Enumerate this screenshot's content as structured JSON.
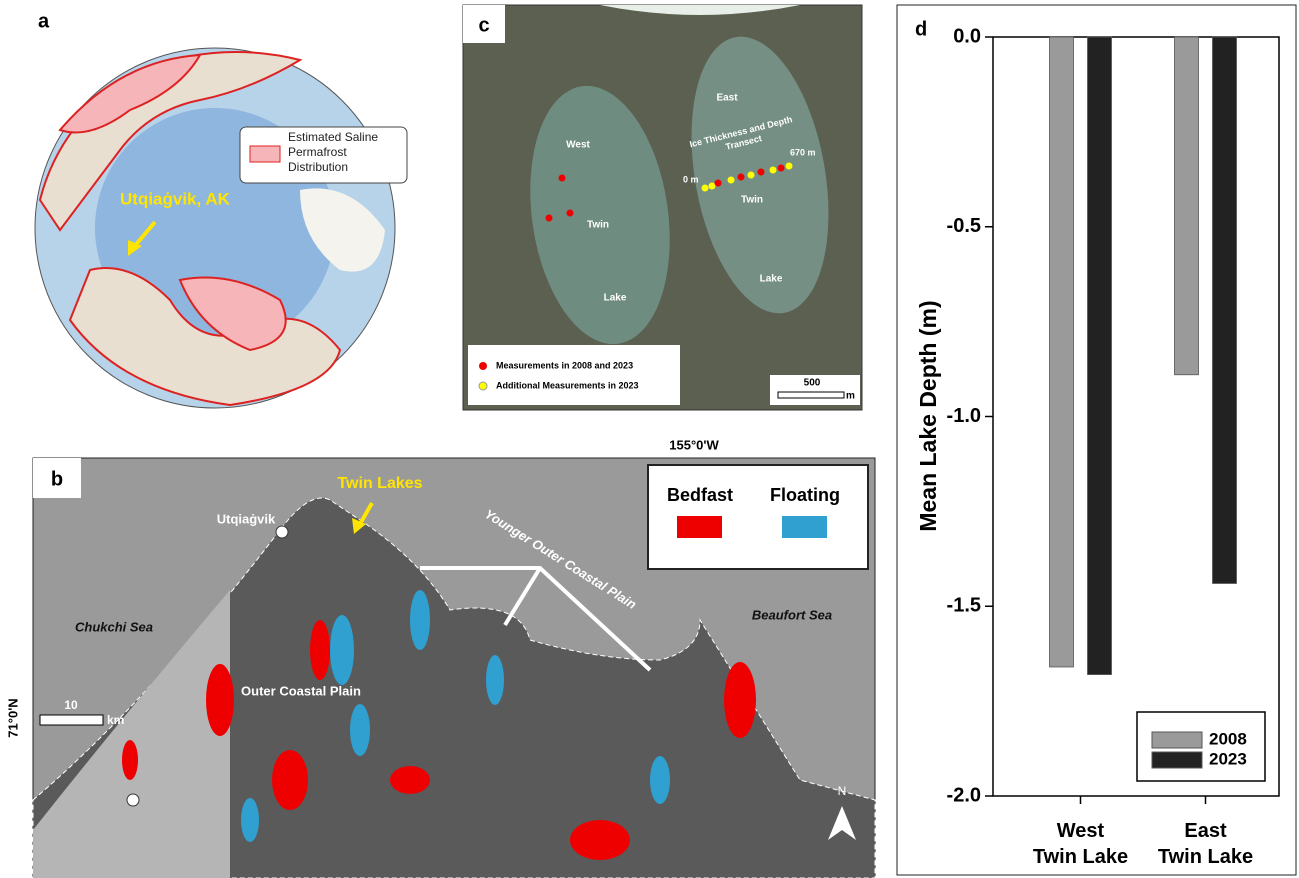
{
  "panel_a": {
    "label": "a",
    "legend": "Estimated Saline Permafrost Distribution",
    "place": "Utqiaġvik, AK"
  },
  "panel_b": {
    "label": "b",
    "longitude": "155°0'W",
    "latitude": "71°0'N",
    "twin_lakes": "Twin Lakes",
    "town": "Utqiaġvik",
    "legend": [
      "Bedfast",
      "Floating"
    ],
    "younger_plain": "Younger Outer Coastal Plain",
    "chukchi": "Chukchi Sea",
    "beaufort": "Beaufort Sea",
    "outer_plain": "Outer Coastal Plain",
    "scale": "10",
    "scale_unit": "km",
    "north": "N"
  },
  "panel_c": {
    "label": "c",
    "west": [
      "West",
      "Twin",
      "Lake"
    ],
    "east": [
      "East",
      "Twin",
      "Lake"
    ],
    "transect": "Ice Thickness and Depth Transect",
    "start": "0 m",
    "end": "670 m",
    "legend": [
      "Measurements in 2008 and 2023",
      "Additional Measurements in 2023"
    ],
    "scale": "500",
    "scale_unit": "m"
  },
  "chart_data": {
    "type": "bar",
    "panel_label": "d",
    "y_label": "Mean Lake Depth (m)",
    "categories": [
      "West\nTwin Lake",
      "East\nTwin Lake"
    ],
    "series": [
      {
        "name": "2008",
        "color": "#9a9a9a",
        "values": [
          -1.66,
          -0.89
        ]
      },
      {
        "name": "2023",
        "color": "#222222",
        "values": [
          -1.68,
          -1.44
        ]
      }
    ],
    "ylim": [
      -2,
      0
    ],
    "yticks": [
      {
        "value": 0,
        "label": "0.0"
      },
      -0.5,
      {
        "value": -1,
        "label": "-1.0"
      },
      -1.5,
      {
        "value": -2,
        "label": "-2.0"
      }
    ],
    "legend_position": "lower right"
  }
}
